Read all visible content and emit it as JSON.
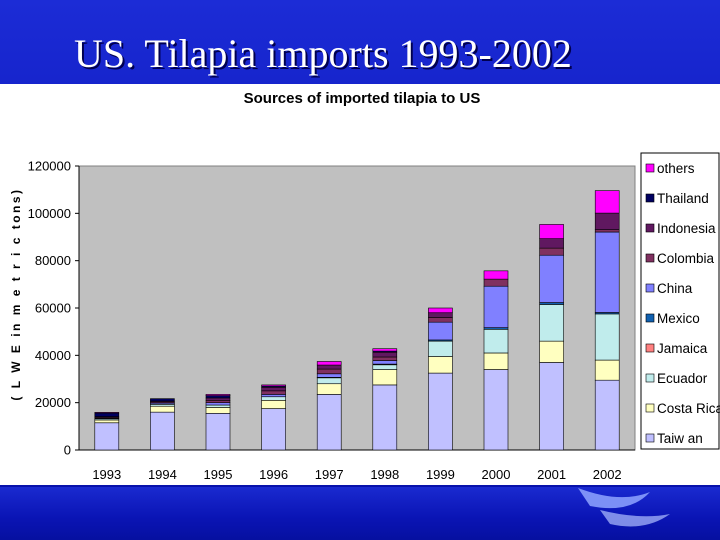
{
  "slide": {
    "title": "US. Tilapia imports 1993-2002"
  },
  "chart_data": {
    "type": "bar",
    "stacked": true,
    "title": "Sources of imported tilapia to US",
    "xlabel": "",
    "ylabel": "( L W E in m e t r i c tons)",
    "categories": [
      "1993",
      "1994",
      "1995",
      "1996",
      "1997",
      "1998",
      "1999",
      "2000",
      "2001",
      "2002"
    ],
    "ylim": [
      0,
      120000
    ],
    "yticks": [
      0,
      20000,
      40000,
      60000,
      80000,
      100000,
      120000
    ],
    "ytick_labels": [
      "0",
      "20000",
      "40000",
      "60000",
      "80000",
      "100000",
      "120000"
    ],
    "grid": false,
    "legend_position": "right",
    "plot_background": "#c0c0c0",
    "series": [
      {
        "name": "Taiw an",
        "color": "#c0c0ff",
        "values": [
          11500,
          16000,
          15500,
          17500,
          23500,
          27500,
          32500,
          34000,
          37000,
          29500
        ]
      },
      {
        "name": "Costa Rica",
        "color": "#ffffc0",
        "values": [
          1200,
          2500,
          2500,
          3500,
          4500,
          6500,
          7000,
          7000,
          9000,
          8500
        ]
      },
      {
        "name": "Ecuador",
        "color": "#c0ecec",
        "values": [
          500,
          800,
          1000,
          1500,
          2500,
          2000,
          6500,
          10000,
          15500,
          19500
        ]
      },
      {
        "name": "Jamaica",
        "color": "#ff8080",
        "values": [
          0,
          0,
          0,
          0,
          0,
          0,
          0,
          0,
          0,
          0
        ]
      },
      {
        "name": "Mexico",
        "color": "#1060b0",
        "values": [
          0,
          0,
          0,
          0,
          200,
          300,
          500,
          700,
          800,
          600
        ]
      },
      {
        "name": "China",
        "color": "#8080ff",
        "values": [
          300,
          500,
          1000,
          1000,
          1500,
          1500,
          7500,
          17500,
          20000,
          34000
        ]
      },
      {
        "name": "Colombia",
        "color": "#803060",
        "values": [
          400,
          500,
          1000,
          1500,
          2000,
          1500,
          2000,
          3000,
          3000,
          1000
        ]
      },
      {
        "name": "Indonesia",
        "color": "#601860",
        "values": [
          200,
          400,
          1000,
          1500,
          1700,
          2000,
          2000,
          0,
          4000,
          7000
        ]
      },
      {
        "name": "Thailand",
        "color": "#000060",
        "values": [
          1500,
          1000,
          1000,
          500,
          0,
          500,
          0,
          0,
          0,
          0
        ]
      },
      {
        "name": "others",
        "color": "#ff00ff",
        "values": [
          300,
          0,
          500,
          500,
          1500,
          1000,
          2000,
          3500,
          6000,
          9500
        ]
      }
    ]
  }
}
